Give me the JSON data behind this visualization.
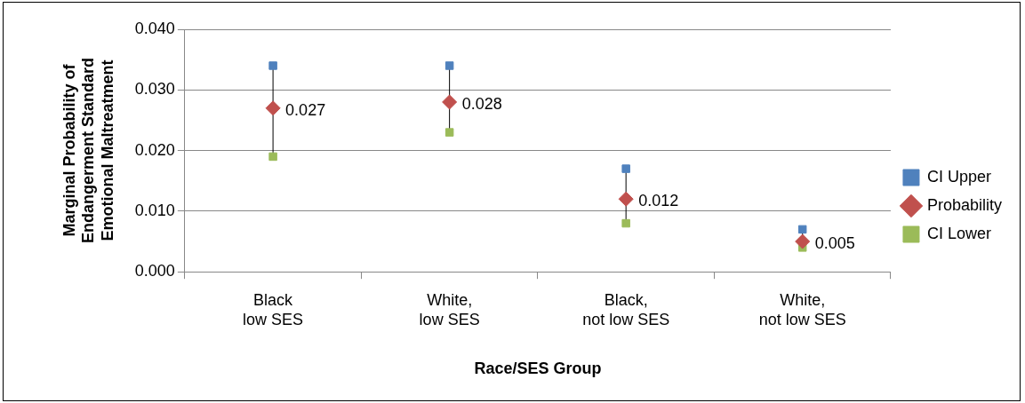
{
  "chart_data": {
    "type": "scatter",
    "xlabel": "Race/SES Group",
    "ylabel": "Marginal Probability of\nEndangerment Standard\nEmotional Maltreatment",
    "categories": [
      "Black\nlow SES",
      "White,\nlow SES",
      "Black,\nnot low SES",
      "White,\nnot low SES"
    ],
    "series": [
      {
        "name": "CI Upper",
        "color": "#4f81bd",
        "marker": "square",
        "values": [
          0.034,
          0.034,
          0.017,
          0.007
        ]
      },
      {
        "name": "Probability",
        "color": "#c0504d",
        "marker": "diamond",
        "values": [
          0.027,
          0.028,
          0.012,
          0.005
        ],
        "value_labels": [
          "0.027",
          "0.028",
          "0.012",
          "0.005"
        ]
      },
      {
        "name": "CI Lower",
        "color": "#9bbb59",
        "marker": "square",
        "values": [
          0.019,
          0.023,
          0.008,
          0.004
        ]
      }
    ],
    "ylim": [
      0,
      0.04
    ],
    "yticks": [
      {
        "value": 0,
        "label": "0.000"
      },
      {
        "value": 0.01,
        "label": "0.010"
      },
      {
        "value": 0.02,
        "label": "0.020"
      },
      {
        "value": 0.03,
        "label": "0.030"
      },
      {
        "value": 0.04,
        "label": "0.040"
      }
    ],
    "grid": "y",
    "legend": "right"
  }
}
